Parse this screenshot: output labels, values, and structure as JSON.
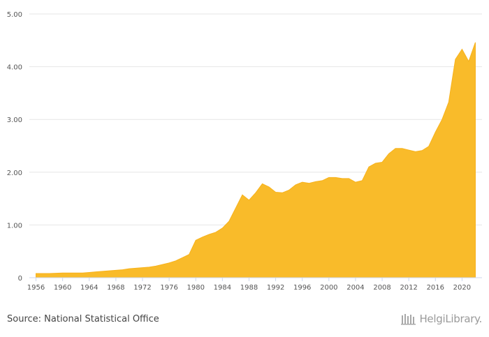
{
  "chart_data": {
    "type": "area",
    "title": "",
    "xlabel": "",
    "ylabel": "",
    "ylim": [
      0,
      5
    ],
    "xlim": [
      1955,
      2023
    ],
    "y_ticks": [
      "0",
      "1.00",
      "2.00",
      "3.00",
      "4.00",
      "5.00"
    ],
    "x_ticks": [
      "1956",
      "1960",
      "1964",
      "1968",
      "1972",
      "1976",
      "1980",
      "1984",
      "1988",
      "1992",
      "1996",
      "2000",
      "2004",
      "2008",
      "2012",
      "2016",
      "2020"
    ],
    "grid": true,
    "color": "#f9bb2a",
    "series": [
      {
        "x": [
          1956,
          1957,
          1958,
          1959,
          1960,
          1961,
          1962,
          1963,
          1964,
          1965,
          1966,
          1967,
          1968,
          1969,
          1970,
          1971,
          1972,
          1973,
          1974,
          1975,
          1976,
          1977,
          1978,
          1979,
          1980,
          1981,
          1982,
          1983,
          1984,
          1985,
          1986,
          1987,
          1988,
          1989,
          1990,
          1991,
          1992,
          1993,
          1994,
          1995,
          1996,
          1997,
          1998,
          1999,
          2000,
          2001,
          2002,
          2003,
          2004,
          2005,
          2006,
          2007,
          2008,
          2009,
          2010,
          2011,
          2012,
          2013,
          2014,
          2015,
          2016,
          2017,
          2018,
          2019,
          2020,
          2021,
          2022
        ],
        "values": [
          0.08,
          0.08,
          0.08,
          0.085,
          0.09,
          0.09,
          0.09,
          0.09,
          0.1,
          0.11,
          0.12,
          0.13,
          0.14,
          0.15,
          0.17,
          0.18,
          0.19,
          0.2,
          0.22,
          0.25,
          0.28,
          0.32,
          0.38,
          0.44,
          0.71,
          0.77,
          0.82,
          0.86,
          0.94,
          1.07,
          1.32,
          1.57,
          1.47,
          1.61,
          1.78,
          1.72,
          1.62,
          1.61,
          1.66,
          1.76,
          1.81,
          1.79,
          1.82,
          1.84,
          1.9,
          1.9,
          1.88,
          1.88,
          1.81,
          1.84,
          2.1,
          2.17,
          2.19,
          2.35,
          2.45,
          2.45,
          2.42,
          2.39,
          2.41,
          2.49,
          2.76,
          3.0,
          3.33,
          4.14,
          4.33,
          4.1,
          4.46
        ]
      }
    ]
  },
  "footer": {
    "source": "Source: National Statistical Office",
    "logo_text": "HelgiLibrary."
  }
}
